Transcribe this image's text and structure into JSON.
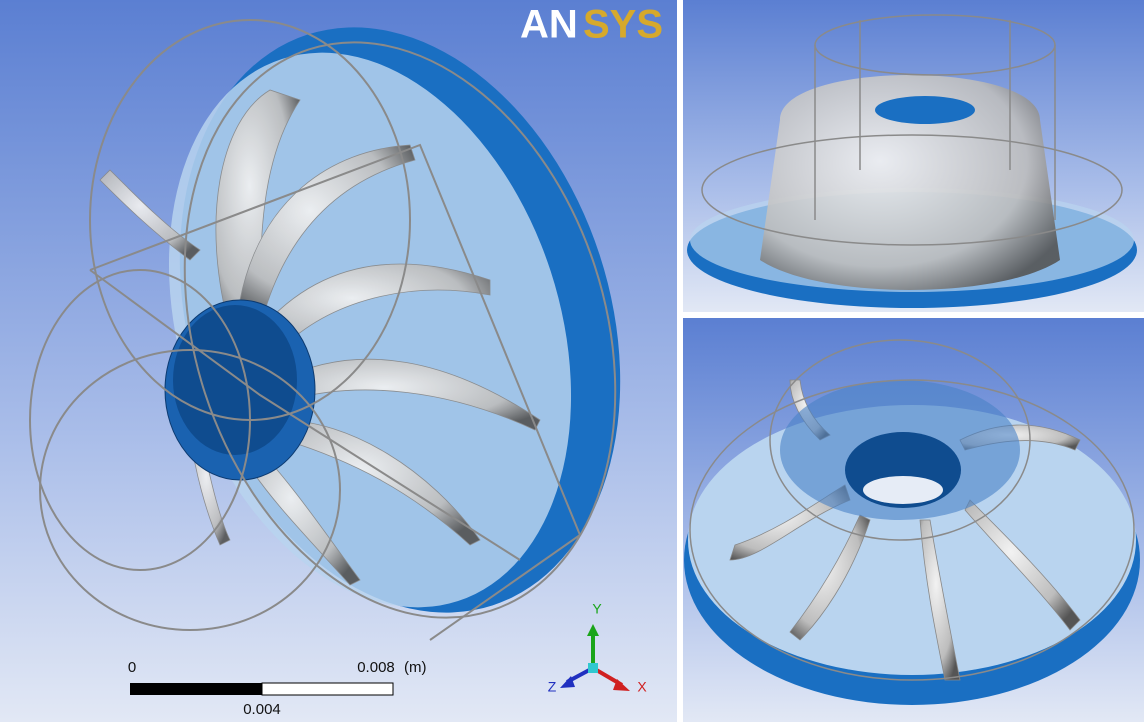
{
  "logo": {
    "part1": "AN",
    "part2": "SYS"
  },
  "scale_bar": {
    "start": "0",
    "end": "0.008",
    "unit": "(m)",
    "mid": "0.004"
  },
  "triad": {
    "y": "Y",
    "z": "Z",
    "x": "X"
  }
}
